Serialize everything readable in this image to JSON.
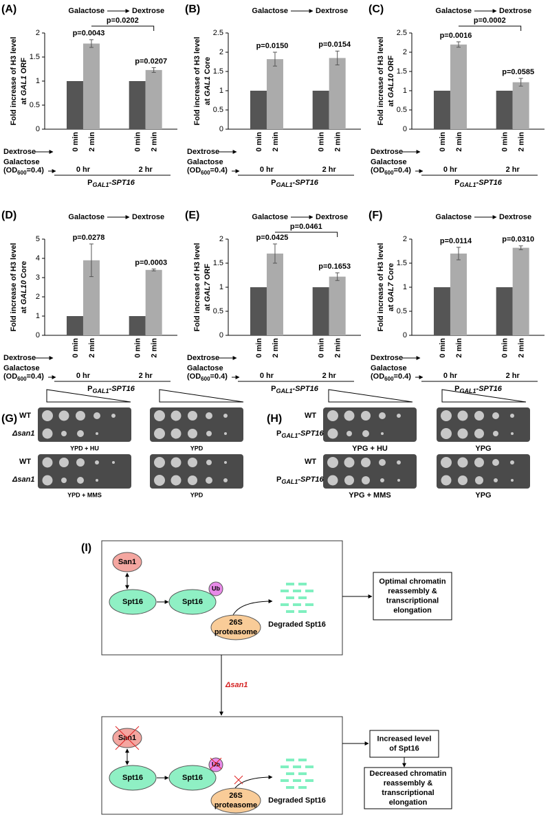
{
  "chart_data": [
    {
      "type": "bar",
      "panel": "(A)",
      "header": [
        "Galactose",
        "Dextrose"
      ],
      "ylabel": "Fold increase of H3 level",
      "ylabel2": [
        "at",
        "GAL1",
        "ORF"
      ],
      "categories": [
        "0 min",
        "2 min",
        "0 min",
        "2 min"
      ],
      "values": [
        1,
        1.78,
        1,
        1.23
      ],
      "errors": [
        0,
        0.08,
        0,
        0.05
      ],
      "colors": [
        "#555555",
        "#ababab",
        "#555555",
        "#ababab"
      ],
      "ylim": [
        0,
        2
      ],
      "yticks": [
        0,
        0.5,
        1,
        1.5,
        2
      ],
      "p_labels": [
        "p=0.0043",
        "p=0.0207"
      ],
      "bracket_label": "p=0.0202",
      "groups": [
        "0 hr",
        "2 hr"
      ],
      "dextrose_label": "Dextrose",
      "galactose_label": "Galactose",
      "od_label": [
        "(OD",
        "600",
        "=0.4)"
      ],
      "strain": [
        "P",
        "GAL1",
        "-SPT16"
      ]
    },
    {
      "type": "bar",
      "panel": "(B)",
      "header": [
        "Galactose",
        "Dextrose"
      ],
      "ylabel": "Fold increase of H3 level",
      "ylabel2": [
        "at",
        "GAL1",
        "Core"
      ],
      "categories": [
        "0 min",
        "2 min",
        "0 min",
        "2 min"
      ],
      "values": [
        1,
        1.82,
        1,
        1.85
      ],
      "errors": [
        0,
        0.18,
        0,
        0.18
      ],
      "colors": [
        "#555555",
        "#ababab",
        "#555555",
        "#ababab"
      ],
      "ylim": [
        0,
        2.5
      ],
      "yticks": [
        0,
        0.5,
        1,
        1.5,
        2,
        2.5
      ],
      "p_labels": [
        "p=0.0150",
        "p=0.0154"
      ],
      "groups": [
        "0 hr",
        "2 hr"
      ],
      "dextrose_label": "Dextrose",
      "galactose_label": "Galactose",
      "od_label": [
        "(OD",
        "600",
        "=0.4)"
      ],
      "strain": [
        "P",
        "GAL1",
        "-SPT16"
      ]
    },
    {
      "type": "bar",
      "panel": "(C)",
      "header": [
        "Galactose",
        "Dextrose"
      ],
      "ylabel": "Fold increase of H3 level",
      "ylabel2": [
        "at",
        "GAL10",
        "ORF"
      ],
      "categories": [
        "0 min",
        "2 min",
        "0 min",
        "2 min"
      ],
      "values": [
        1,
        2.2,
        1,
        1.22
      ],
      "errors": [
        0,
        0.07,
        0,
        0.1
      ],
      "colors": [
        "#555555",
        "#ababab",
        "#555555",
        "#ababab"
      ],
      "ylim": [
        0,
        2.5
      ],
      "yticks": [
        0,
        0.5,
        1,
        1.5,
        2,
        2.5
      ],
      "p_labels": [
        "p=0.0016",
        "p=0.0585"
      ],
      "bracket_label": "p=0.0002",
      "groups": [
        "0 hr",
        "2 hr"
      ],
      "dextrose_label": "Dextrose",
      "galactose_label": "Galactose",
      "od_label": [
        "(OD",
        "600",
        "=0.4)"
      ],
      "strain": [
        "P",
        "GAL1",
        "-SPT16"
      ]
    },
    {
      "type": "bar",
      "panel": "(D)",
      "header": [
        "Galactose",
        "Dextrose"
      ],
      "ylabel": "Fold increase of H3 level",
      "ylabel2": [
        "at",
        "GAL10",
        "Core"
      ],
      "categories": [
        "0 min",
        "2 min",
        "0 min",
        "2 min"
      ],
      "values": [
        1,
        3.9,
        1,
        3.4
      ],
      "errors": [
        0,
        0.85,
        0,
        0.05
      ],
      "colors": [
        "#555555",
        "#ababab",
        "#555555",
        "#ababab"
      ],
      "ylim": [
        0,
        5
      ],
      "yticks": [
        0,
        1,
        2,
        3,
        4,
        5
      ],
      "p_labels": [
        "p=0.0278",
        "p=0.0003"
      ],
      "groups": [
        "0 hr",
        "2 hr"
      ],
      "dextrose_label": "Dextrose",
      "galactose_label": "Galactose",
      "od_label": [
        "(OD",
        "600",
        "=0.4)"
      ],
      "strain": [
        "P",
        "GAL1",
        "-SPT16"
      ]
    },
    {
      "type": "bar",
      "panel": "(E)",
      "header": [
        "Galactose",
        "Dextrose"
      ],
      "ylabel": "Fold increase of H3 level",
      "ylabel2": [
        "at",
        "GAL7",
        "ORF"
      ],
      "categories": [
        "0 min",
        "2 min",
        "0 min",
        "2 min"
      ],
      "values": [
        1,
        1.7,
        1,
        1.22
      ],
      "errors": [
        0,
        0.2,
        0,
        0.08
      ],
      "colors": [
        "#555555",
        "#ababab",
        "#555555",
        "#ababab"
      ],
      "ylim": [
        0,
        2
      ],
      "yticks": [
        0,
        0.5,
        1,
        1.5,
        2
      ],
      "p_labels": [
        "p=0.0425",
        "p=0.1653"
      ],
      "bracket_label": "p=0.0461",
      "groups": [
        "0 hr",
        "2 hr"
      ],
      "dextrose_label": "Dextrose",
      "galactose_label": "Galactose",
      "od_label": [
        "(OD",
        "600",
        "=0.4)"
      ],
      "strain": [
        "P",
        "GAL1",
        "-SPT16"
      ]
    },
    {
      "type": "bar",
      "panel": "(F)",
      "header": [
        "Galactose",
        "Dextrose"
      ],
      "ylabel": "Fold increase of H3 level",
      "ylabel2": [
        "at",
        "GAL7",
        "Core"
      ],
      "categories": [
        "0 min",
        "2 min",
        "0 min",
        "2 min"
      ],
      "values": [
        1,
        1.7,
        1,
        1.82
      ],
      "errors": [
        0,
        0.13,
        0,
        0.04
      ],
      "colors": [
        "#555555",
        "#ababab",
        "#555555",
        "#ababab"
      ],
      "ylim": [
        0,
        2
      ],
      "yticks": [
        0,
        0.5,
        1,
        1.5,
        2
      ],
      "p_labels": [
        "p=0.0114",
        "p=0.0310"
      ],
      "groups": [
        "0 hr",
        "2 hr"
      ],
      "dextrose_label": "Dextrose",
      "galactose_label": "Galactose",
      "od_label": [
        "(OD",
        "600",
        "=0.4)"
      ],
      "strain": [
        "P",
        "GAL1",
        "-SPT16"
      ]
    }
  ],
  "panel_g": {
    "label": "(G)",
    "strain_wt": "WT",
    "strain_mut": "Δsan1",
    "plates": [
      "YPD + HU",
      "YPD",
      "YPD + MMS",
      "YPD"
    ]
  },
  "panel_h": {
    "label": "(H)",
    "strain_wt": "WT",
    "strain_mut": [
      "P",
      "GAL1",
      "-SPT16"
    ],
    "plates": [
      "YPG + HU",
      "YPG",
      "YPG + MMS",
      "YPG"
    ]
  },
  "panel_i": {
    "label": "(I)",
    "san1": "San1",
    "spt16": "Spt16",
    "ub": "Ub",
    "proteasome": [
      "26S",
      "proteasome"
    ],
    "degraded": "Degraded Spt16",
    "wt_outcome": [
      "Optimal chromatin",
      "reassembly &",
      "transcriptional",
      "elongation"
    ],
    "mutation": "Δsan1",
    "mut_outcome1": [
      "Increased level",
      "of Spt16"
    ],
    "mut_outcome2": [
      "Decreased chromatin",
      "reassembly &",
      "transcriptional",
      "elongation"
    ]
  }
}
